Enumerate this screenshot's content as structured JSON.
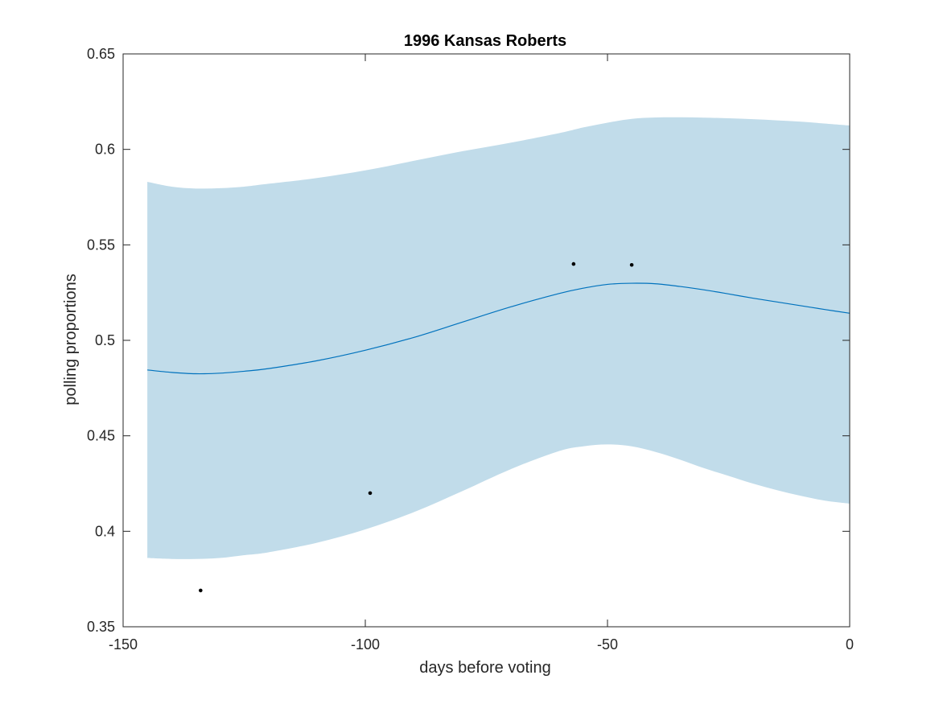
{
  "chart_data": {
    "type": "line",
    "title": "1996 Kansas Roberts",
    "xlabel": "days before voting",
    "ylabel": "polling proportions",
    "xlim": [
      -150,
      0
    ],
    "ylim": [
      0.35,
      0.65
    ],
    "xticks": [
      -150,
      -100,
      -50,
      0
    ],
    "yticks": [
      0.35,
      0.4,
      0.45,
      0.5,
      0.55,
      0.6,
      0.65
    ],
    "xtick_labels": [
      "-150",
      "-100",
      "-50",
      "0"
    ],
    "ytick_labels": [
      "0.35",
      "0.4",
      "0.45",
      "0.5",
      "0.55",
      "0.6",
      "0.65"
    ],
    "grid": false,
    "colors": {
      "band": "#c1dcea",
      "line": "#0072bd",
      "points": "#000000",
      "axes": "#262626"
    },
    "series": [
      {
        "role": "confidence band",
        "x": [
          -145,
          -140,
          -135,
          -130,
          -125,
          -120,
          -110,
          -100,
          -90,
          -80,
          -70,
          -60,
          -55,
          -50,
          -45,
          -40,
          -35,
          -30,
          -25,
          -20,
          -15,
          -10,
          -5,
          0
        ],
        "upper": [
          0.583,
          0.5805,
          0.5795,
          0.5797,
          0.5805,
          0.582,
          0.585,
          0.589,
          0.594,
          0.599,
          0.6035,
          0.6085,
          0.6115,
          0.614,
          0.616,
          0.6167,
          0.6168,
          0.6166,
          0.6163,
          0.6158,
          0.6152,
          0.6145,
          0.6135,
          0.6125
        ],
        "lower": [
          0.386,
          0.3855,
          0.3855,
          0.386,
          0.3875,
          0.389,
          0.394,
          0.401,
          0.41,
          0.421,
          0.4325,
          0.442,
          0.4445,
          0.4455,
          0.4445,
          0.4415,
          0.4375,
          0.433,
          0.429,
          0.425,
          0.4215,
          0.4185,
          0.416,
          0.4145
        ]
      },
      {
        "role": "mean",
        "x": [
          -145,
          -140,
          -135,
          -130,
          -125,
          -120,
          -110,
          -100,
          -90,
          -80,
          -70,
          -60,
          -55,
          -50,
          -45,
          -40,
          -35,
          -30,
          -25,
          -20,
          -15,
          -10,
          -5,
          0
        ],
        "values": [
          0.4845,
          0.4832,
          0.4825,
          0.4828,
          0.4838,
          0.4852,
          0.4893,
          0.4948,
          0.5015,
          0.5095,
          0.5175,
          0.5245,
          0.5273,
          0.5293,
          0.5299,
          0.5296,
          0.5282,
          0.5264,
          0.5243,
          0.5221,
          0.5201,
          0.5181,
          0.5161,
          0.5142
        ]
      },
      {
        "role": "polls",
        "x": [
          -134,
          -99,
          -57,
          -45
        ],
        "values": [
          0.369,
          0.42,
          0.54,
          0.5395
        ]
      }
    ]
  }
}
